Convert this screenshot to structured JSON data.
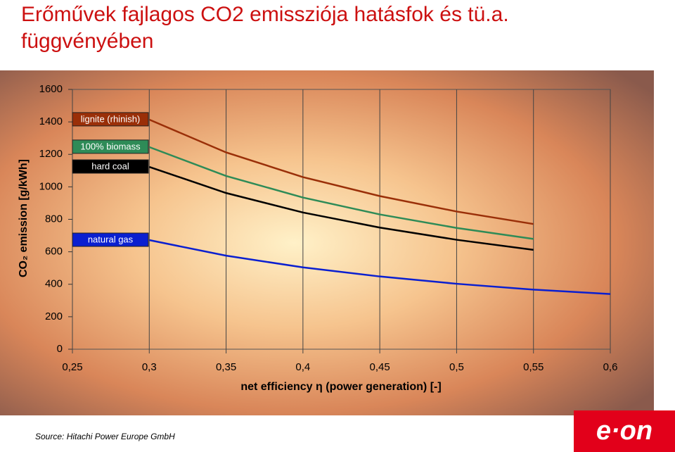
{
  "title": "Erőművek fajlagos CO2 emissziója hatásfok és tü.a.",
  "title_line2": "függvényében",
  "source": "Source: Hitachi Power Europe GmbH",
  "logo": "e·on",
  "chart_data": {
    "type": "line",
    "y_label": "CO₂ emission [g/kWh]",
    "x_label": "net efficiency η (power generation) [-]",
    "xlim": [
      0.25,
      0.6
    ],
    "ylim": [
      0,
      1600
    ],
    "xticks": [
      {
        "value": 0.25,
        "label": "0,25"
      },
      {
        "value": 0.3,
        "label": "0,3"
      },
      {
        "value": 0.35,
        "label": "0,35"
      },
      {
        "value": 0.4,
        "label": "0,4"
      },
      {
        "value": 0.45,
        "label": "0,45"
      },
      {
        "value": 0.5,
        "label": "0,5"
      },
      {
        "value": 0.55,
        "label": "0,55"
      },
      {
        "value": 0.6,
        "label": "0,6"
      }
    ],
    "yticks": [
      0,
      200,
      400,
      600,
      800,
      1000,
      1200,
      1400,
      1600
    ],
    "grid": "x",
    "series": [
      {
        "name": "lignite (rhinish)",
        "color": "#9a2f08",
        "x": [
          0.3,
          0.35,
          0.4,
          0.45,
          0.5,
          0.55
        ],
        "values": [
          1414,
          1212,
          1060,
          943,
          848,
          771
        ]
      },
      {
        "name": "100% biomass",
        "color": "#2e8b57",
        "x": [
          0.3,
          0.35,
          0.4,
          0.45,
          0.5,
          0.55
        ],
        "values": [
          1245,
          1067,
          934,
          830,
          747,
          679
        ]
      },
      {
        "name": "hard coal",
        "color": "#000000",
        "x": [
          0.3,
          0.35,
          0.4,
          0.45,
          0.5,
          0.55
        ],
        "values": [
          1123,
          962,
          842,
          749,
          674,
          612
        ]
      },
      {
        "name": "natural gas",
        "color": "#0a1fd0",
        "x": [
          0.3,
          0.35,
          0.4,
          0.45,
          0.5,
          0.55,
          0.6
        ],
        "values": [
          672,
          576,
          504,
          448,
          403,
          367,
          340
        ]
      }
    ]
  }
}
